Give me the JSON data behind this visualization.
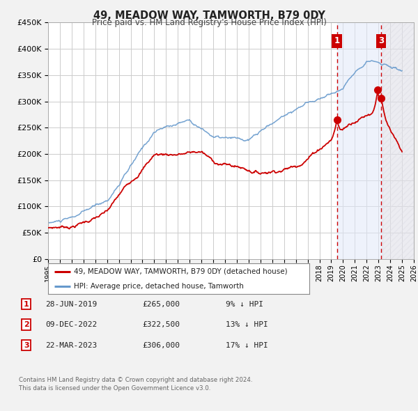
{
  "title": "49, MEADOW WAY, TAMWORTH, B79 0DY",
  "subtitle": "Price paid vs. HM Land Registry's House Price Index (HPI)",
  "legend_label_red": "49, MEADOW WAY, TAMWORTH, B79 0DY (detached house)",
  "legend_label_blue": "HPI: Average price, detached house, Tamworth",
  "transactions": [
    {
      "num": 1,
      "date": "28-JUN-2019",
      "price": "£265,000",
      "pct": "9% ↓ HPI",
      "year": 2019.49,
      "price_val": 265000
    },
    {
      "num": 2,
      "date": "09-DEC-2022",
      "price": "£322,500",
      "pct": "13% ↓ HPI",
      "year": 2022.94,
      "price_val": 322500
    },
    {
      "num": 3,
      "date": "22-MAR-2023",
      "price": "£306,000",
      "pct": "17% ↓ HPI",
      "year": 2023.22,
      "price_val": 306000
    }
  ],
  "footer_line1": "Contains HM Land Registry data © Crown copyright and database right 2024.",
  "footer_line2": "This data is licensed under the Open Government Licence v3.0.",
  "bg_color": "#f2f2f2",
  "plot_bg_color": "#ffffff",
  "grid_color": "#cccccc",
  "red_color": "#cc0000",
  "blue_color": "#6699cc",
  "marker_color": "#cc0000",
  "vline_color": "#cc0000",
  "shade_color_blue": "#e0e8f8",
  "shade_color_hatch": "#e8e8ee",
  "x_min": 1995,
  "x_max": 2026,
  "y_min": 0,
  "y_max": 450000,
  "y_ticks": [
    0,
    50000,
    100000,
    150000,
    200000,
    250000,
    300000,
    350000,
    400000,
    450000
  ]
}
